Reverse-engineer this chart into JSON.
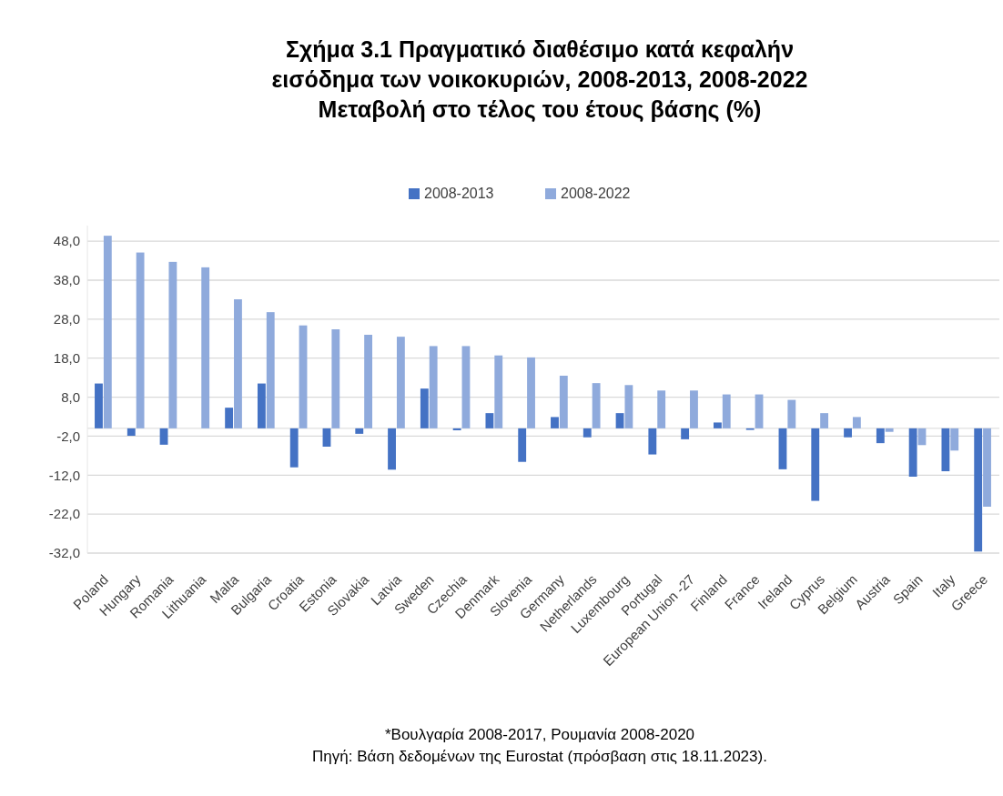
{
  "chart_data": {
    "type": "bar",
    "title": "Σχήμα 3.1 Πραγματικό διαθέσιμο κατά κεφαλήν\nεισόδημα των νοικοκυριών, 2008-2013, 2008-2022\nΜεταβολή στο τέλος του έτους βάσης (%)",
    "categories": [
      "Poland",
      "Hungary",
      "Romania",
      "Lithuania",
      "Malta",
      "Bulgaria",
      "Croatia",
      "Estonia",
      "Slovakia",
      "Latvia",
      "Sweden",
      "Czechia",
      "Denmark",
      "Slovenia",
      "Germany",
      "Netherlands",
      "Luxembourg",
      "Portugal",
      "European Union -27",
      "Finland",
      "France",
      "Ireland",
      "Cyprus",
      "Belgium",
      "Austria",
      "Spain",
      "Italy",
      "Greece"
    ],
    "series": [
      {
        "name": "2008-2013",
        "color": "#4472c4",
        "values": [
          11.5,
          -1.9,
          -4.2,
          null,
          5.3,
          11.5,
          -10.0,
          -4.7,
          -1.4,
          -10.6,
          10.2,
          -0.5,
          3.9,
          -8.6,
          2.9,
          -2.3,
          3.9,
          -6.7,
          -2.8,
          1.5,
          -0.4,
          -10.5,
          -18.6,
          -2.3,
          -3.8,
          -12.4,
          -11.0,
          -31.6
        ]
      },
      {
        "name": "2008-2022",
        "color": "#8faadc",
        "values": [
          49.4,
          45.1,
          42.7,
          41.3,
          33.1,
          29.8,
          26.4,
          25.4,
          24.0,
          23.5,
          21.1,
          21.1,
          18.7,
          18.2,
          13.5,
          11.6,
          11.1,
          9.7,
          9.7,
          8.7,
          8.7,
          7.3,
          3.9,
          2.9,
          -0.9,
          -4.3,
          -5.7,
          -20.1
        ]
      }
    ],
    "ylim": [
      -32,
      52
    ],
    "yticks": [
      {
        "value": -32,
        "label": "-32,0"
      },
      {
        "value": -22,
        "label": "-22,0"
      },
      {
        "value": -12,
        "label": "-12,0"
      },
      {
        "value": -2,
        "label": "-2,0"
      },
      {
        "value": 8,
        "label": "8,0"
      },
      {
        "value": 18,
        "label": "18,0"
      },
      {
        "value": 28,
        "label": "28,0"
      },
      {
        "value": 38,
        "label": "38,0"
      },
      {
        "value": 48,
        "label": "48,0"
      }
    ],
    "grid": "y",
    "legend": "top",
    "annotations": [
      "*Βουλγαρία 2008-2017, Ρουμανία 2008-2020",
      "Πηγή: Βάση δεδομένων της Eurostat (πρόσβαση στις 18.11.2023)."
    ]
  }
}
